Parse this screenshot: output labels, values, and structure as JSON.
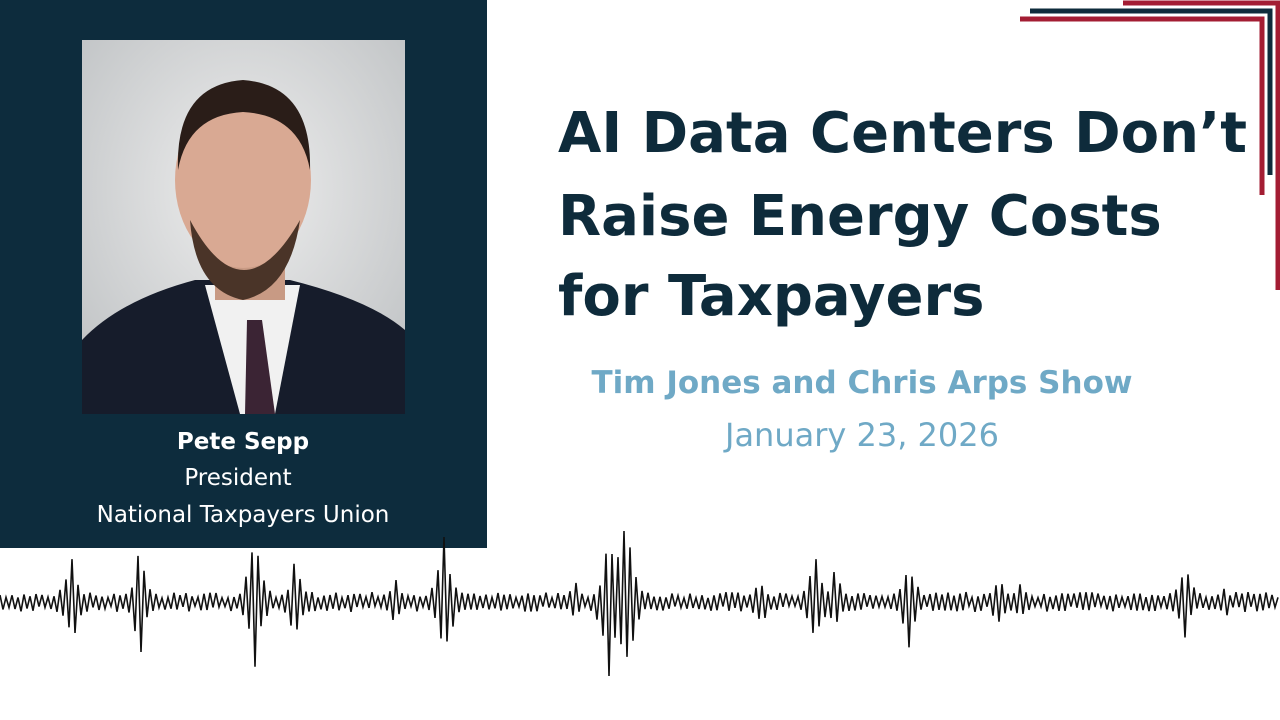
{
  "speaker": {
    "name": "Pete Sepp",
    "role": "President",
    "organization": "National Taxpayers Union"
  },
  "title": {
    "lines": [
      "AI Data Centers Don’t",
      "Raise Energy Costs",
      "for Taxpayers"
    ]
  },
  "show": "Tim Jones and Chris Arps Show",
  "date": "January 23, 2026"
}
